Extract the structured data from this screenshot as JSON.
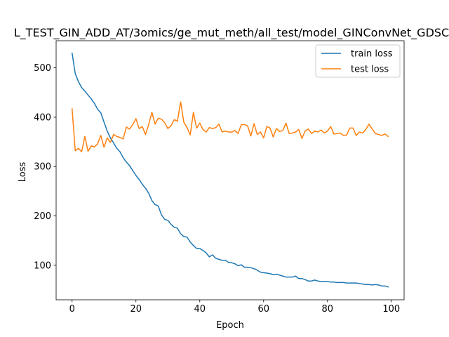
{
  "chart_data": {
    "type": "line",
    "title": "L_TEST_GIN_ADD_AT/3omics/ge_mut_meth/all_test/model_GINConvNet_GDSC",
    "xlabel": "Epoch",
    "ylabel": "Loss",
    "xlim": [
      -5,
      104
    ],
    "ylim": [
      30,
      555
    ],
    "x_ticks": [
      0,
      20,
      40,
      60,
      80,
      100
    ],
    "y_ticks": [
      100,
      200,
      300,
      400,
      500
    ],
    "legend_position": "upper right",
    "grid": false,
    "x": [
      0,
      1,
      2,
      3,
      4,
      5,
      6,
      7,
      8,
      9,
      10,
      11,
      12,
      13,
      14,
      15,
      16,
      17,
      18,
      19,
      20,
      21,
      22,
      23,
      24,
      25,
      26,
      27,
      28,
      29,
      30,
      31,
      32,
      33,
      34,
      35,
      36,
      37,
      38,
      39,
      40,
      41,
      42,
      43,
      44,
      45,
      46,
      47,
      48,
      49,
      50,
      51,
      52,
      53,
      54,
      55,
      56,
      57,
      58,
      59,
      60,
      61,
      62,
      63,
      64,
      65,
      66,
      67,
      68,
      69,
      70,
      71,
      72,
      73,
      74,
      75,
      76,
      77,
      78,
      79,
      80,
      81,
      82,
      83,
      84,
      85,
      86,
      87,
      88,
      89,
      90,
      91,
      92,
      93,
      94,
      95,
      96,
      97,
      98,
      99
    ],
    "series": [
      {
        "name": "train loss",
        "color": "#1f77b4",
        "values": [
          530,
          488,
          472,
          460,
          453,
          445,
          437,
          428,
          416,
          409,
          390,
          372,
          358,
          348,
          337,
          330,
          318,
          309,
          302,
          292,
          282,
          274,
          264,
          256,
          246,
          231,
          223,
          220,
          202,
          193,
          191,
          183,
          177,
          175,
          164,
          158,
          157,
          147,
          140,
          134,
          134,
          130,
          125,
          117,
          121,
          114,
          112,
          110,
          110,
          106,
          105,
          103,
          99,
          101,
          96,
          96,
          95,
          93,
          90,
          86,
          85,
          84,
          83,
          81,
          82,
          80,
          78,
          76,
          76,
          76,
          78,
          73,
          73,
          71,
          68,
          68,
          70,
          68,
          67,
          67,
          67,
          66,
          66,
          65,
          65,
          65,
          64,
          64,
          64,
          64,
          63,
          62,
          61,
          61,
          60,
          61,
          60,
          58,
          58,
          56
        ]
      },
      {
        "name": "test loss",
        "color": "#ff7f0e",
        "values": [
          417,
          332,
          337,
          330,
          361,
          331,
          342,
          340,
          346,
          363,
          339,
          358,
          349,
          365,
          361,
          359,
          356,
          380,
          376,
          385,
          397,
          377,
          381,
          365,
          385,
          410,
          386,
          398,
          396,
          389,
          377,
          383,
          395,
          392,
          431,
          390,
          379,
          364,
          410,
          378,
          388,
          375,
          370,
          379,
          377,
          379,
          386,
          370,
          372,
          370,
          370,
          373,
          367,
          385,
          385,
          382,
          362,
          387,
          365,
          370,
          358,
          381,
          378,
          360,
          377,
          371,
          373,
          388,
          367,
          368,
          370,
          375,
          357,
          372,
          376,
          367,
          372,
          370,
          374,
          368,
          372,
          381,
          366,
          367,
          368,
          363,
          364,
          378,
          378,
          363,
          370,
          368,
          375,
          386,
          376,
          367,
          365,
          363,
          366,
          361
        ]
      }
    ]
  }
}
